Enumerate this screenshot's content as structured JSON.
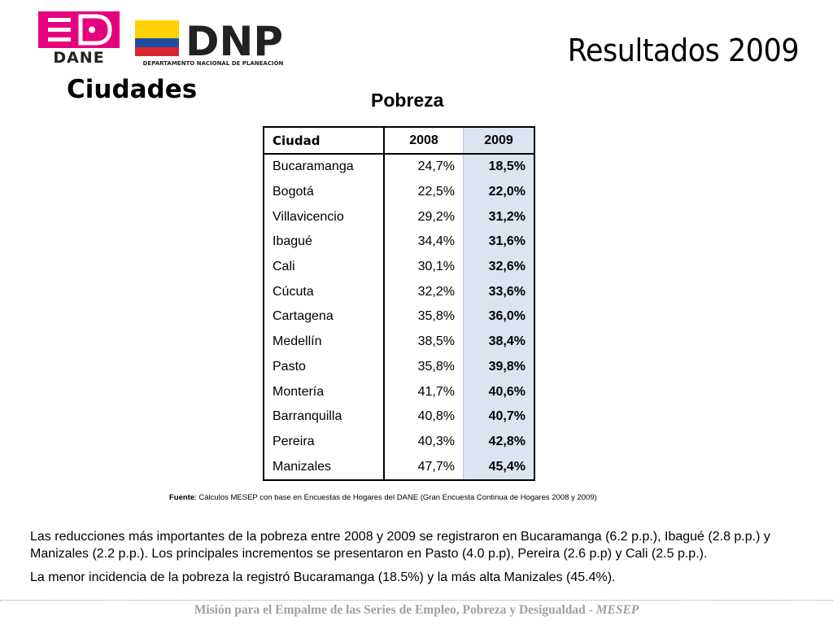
{
  "header": {
    "logo_dane_text": "DANE",
    "logo_dnp_text": "DNP",
    "logo_dnp_subtitle": "DEPARTAMENTO NACIONAL DE PLANEACIÓN",
    "title": "Resultados 2009",
    "section": "Ciudades"
  },
  "table": {
    "title": "Pobreza",
    "headers": [
      "Ciudad",
      "2008",
      "2009"
    ],
    "rows": [
      [
        "Bucaramanga",
        "24,7%",
        "18,5%"
      ],
      [
        "Bogotá",
        "22,5%",
        "22,0%"
      ],
      [
        "Villavicencio",
        "29,2%",
        "31,2%"
      ],
      [
        "Ibagué",
        "34,4%",
        "31,6%"
      ],
      [
        "Cali",
        "30,1%",
        "32,6%"
      ],
      [
        "Cúcuta",
        "32,2%",
        "33,6%"
      ],
      [
        "Cartagena",
        "35,8%",
        "36,0%"
      ],
      [
        "Medellín",
        "38,5%",
        "38,4%"
      ],
      [
        "Pasto",
        "35,8%",
        "39,8%"
      ],
      [
        "Montería",
        "41,7%",
        "40,6%"
      ],
      [
        "Barranquilla",
        "40,8%",
        "40,7%"
      ],
      [
        "Pereira",
        "40,3%",
        "42,8%"
      ],
      [
        "Manizales",
        "47,7%",
        "45,4%"
      ]
    ],
    "highlight_color": "#dbe5f1"
  },
  "source": {
    "label": "Fuente",
    "text": ": Cálculos MESEP con base en Encuestas de Hogares del DANE (Gran Encuesta Continua de Hogares 2008 y 2009)"
  },
  "paragraphs": [
    "Las reducciones más importantes de la pobreza entre 2008 y 2009 se registraron en Bucaramanga (6.2 p.p.), Ibagué (2.8 p.p.) y Manizales (2.2 p.p.). Los principales incrementos se presentaron en Pasto (4.0 p.p), Pereira (2.6 p.p) y Cali (2.5 p.p.).",
    "La menor incidencia de la pobreza la registró Bucaramanga (18.5%) y la más alta Manizales (45.4%)."
  ],
  "footer": {
    "text": "Misión para el Empalme de las Series de Empleo, Pobreza y Desigualdad - ",
    "acronym": "MESEP"
  },
  "colors": {
    "dane_magenta": "#e6007e",
    "dnp_yellow": "#ffd100",
    "dnp_blue": "#1f4e9e",
    "dnp_red": "#d7262d",
    "footer_gray": "#a0a0a0"
  }
}
